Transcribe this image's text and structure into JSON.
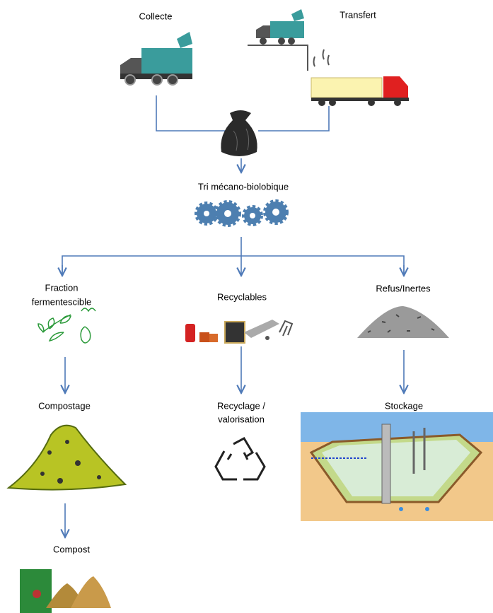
{
  "nodes": [
    {
      "lines": [
        "Collecte"
      ]
    },
    {
      "lines": [
        "Transfert"
      ]
    },
    {
      "lines": [
        "Tri mécano-biolobique"
      ]
    },
    {
      "lines": [
        "Fraction",
        "fermentescible"
      ]
    },
    {
      "lines": [
        "Recyclables"
      ]
    },
    {
      "lines": [
        "Refus/Inertes"
      ]
    },
    {
      "lines": [
        "Compostage"
      ]
    },
    {
      "lines": [
        "Recyclage /",
        "valorisation"
      ]
    },
    {
      "lines": [
        "Stockage"
      ]
    },
    {
      "lines": [
        "Compost"
      ]
    }
  ]
}
